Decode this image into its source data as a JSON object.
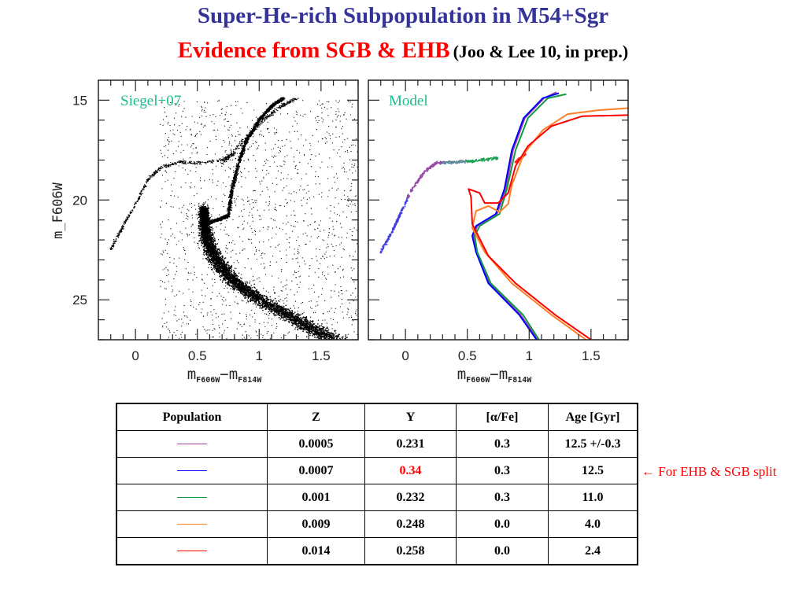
{
  "title": {
    "line1": "Super-He-rich Subpopulation in M54+Sgr",
    "line2_red": "Evidence from SGB & EHB",
    "line2_black": "(Joo & Lee 10, in prep.)"
  },
  "chart_data": [
    {
      "type": "scatter",
      "label": "Siegel+07",
      "xlabel": "m_F606W − m_F814W",
      "ylabel": "m_F606W",
      "xlim": [
        -0.3,
        1.8
      ],
      "ylim": [
        27,
        14
      ],
      "y_inverted": true,
      "xticks": [
        "0",
        "0.5",
        "1",
        "1.5"
      ],
      "yticks": [
        "15",
        "20",
        "25"
      ],
      "grid": false,
      "point_color": "#000000",
      "label_color": "#1abc8c",
      "ridge_lines": {
        "main_sequence": [
          [
            1.6,
            27
          ],
          [
            1.3,
            26
          ],
          [
            1.0,
            25
          ],
          [
            0.78,
            24
          ],
          [
            0.65,
            23
          ],
          [
            0.58,
            22
          ],
          [
            0.56,
            21.2
          ],
          [
            0.55,
            20.4
          ]
        ],
        "subgiant_branch": [
          [
            0.57,
            21.2
          ],
          [
            0.66,
            21.0
          ],
          [
            0.75,
            20.8
          ]
        ],
        "red_giant_branch": [
          [
            0.75,
            20.8
          ],
          [
            0.78,
            19.5
          ],
          [
            0.84,
            18
          ],
          [
            0.9,
            17
          ],
          [
            1.0,
            16
          ],
          [
            1.1,
            15.3
          ],
          [
            1.2,
            14.9
          ]
        ],
        "horizontal_branch": [
          [
            -0.2,
            22.5
          ],
          [
            -0.1,
            21.3
          ],
          [
            0.0,
            20.2
          ],
          [
            0.1,
            19.0
          ],
          [
            0.2,
            18.4
          ],
          [
            0.35,
            18.1
          ],
          [
            0.5,
            18.15
          ],
          [
            0.7,
            18.0
          ],
          [
            0.8,
            17.7
          ]
        ]
      }
    },
    {
      "type": "line",
      "label": "Model",
      "xlabel": "m_F606W − m_F814W",
      "xlim": [
        -0.3,
        1.8
      ],
      "ylim": [
        27,
        14
      ],
      "y_inverted": true,
      "xticks": [
        "0",
        "0.5",
        "1",
        "1.5"
      ],
      "grid": false,
      "label_color": "#1abc8c",
      "series": [
        {
          "color": "#a040a0",
          "points": [
            [
              1.07,
              27
            ],
            [
              0.93,
              25.75
            ],
            [
              0.68,
              24.17
            ],
            [
              0.575,
              22.6
            ],
            [
              0.55,
              21.8
            ],
            [
              0.58,
              21.3
            ],
            [
              0.74,
              20.7
            ],
            [
              0.81,
              19.45
            ],
            [
              0.87,
              17.5
            ],
            [
              0.965,
              15.9
            ],
            [
              1.12,
              14.9
            ],
            [
              1.22,
              14.6
            ]
          ]
        },
        {
          "color": "#0000ff",
          "points": [
            [
              1.06,
              27
            ],
            [
              0.92,
              25.75
            ],
            [
              0.67,
              24.17
            ],
            [
              0.57,
              22.6
            ],
            [
              0.54,
              21.8
            ],
            [
              0.57,
              21.3
            ],
            [
              0.73,
              20.7
            ],
            [
              0.8,
              19.45
            ],
            [
              0.86,
              17.5
            ],
            [
              0.955,
              15.9
            ],
            [
              1.11,
              14.9
            ],
            [
              1.24,
              14.65
            ]
          ]
        },
        {
          "color": "#119944",
          "points": [
            [
              1.08,
              27
            ],
            [
              0.95,
              25.75
            ],
            [
              0.69,
              24.17
            ],
            [
              0.58,
              22.6
            ],
            [
              0.56,
              21.8
            ],
            [
              0.6,
              21.3
            ],
            [
              0.76,
              20.7
            ],
            [
              0.82,
              19.45
            ],
            [
              0.89,
              17.5
            ],
            [
              0.99,
              15.9
            ],
            [
              1.15,
              14.9
            ],
            [
              1.3,
              14.7
            ]
          ]
        },
        {
          "color": "#ff7f27",
          "points": [
            [
              1.46,
              27
            ],
            [
              1.18,
              25.75
            ],
            [
              0.86,
              24.17
            ],
            [
              0.64,
              22.6
            ],
            [
              0.54,
              21.4
            ],
            [
              0.57,
              20.55
            ],
            [
              0.67,
              20.3
            ],
            [
              0.76,
              20.6
            ],
            [
              0.83,
              20.2
            ],
            [
              0.86,
              19.25
            ],
            [
              0.955,
              17.7
            ],
            [
              1.11,
              16.5
            ],
            [
              1.31,
              15.7
            ],
            [
              1.56,
              15.5
            ],
            [
              1.8,
              15.4
            ]
          ]
        },
        {
          "color": "#ff0000",
          "points": [
            [
              1.5,
              27
            ],
            [
              1.21,
              25.75
            ],
            [
              0.89,
              24.17
            ],
            [
              0.67,
              22.8
            ],
            [
              0.54,
              21.2
            ],
            [
              0.53,
              19.85
            ],
            [
              0.51,
              19.45
            ],
            [
              0.6,
              19.65
            ],
            [
              0.64,
              20.15
            ],
            [
              0.75,
              20.15
            ],
            [
              0.83,
              19.65
            ],
            [
              0.89,
              18.3
            ],
            [
              0.99,
              17.3
            ],
            [
              1.18,
              16.3
            ],
            [
              1.43,
              15.8
            ],
            [
              1.8,
              15.75
            ]
          ]
        }
      ],
      "hb_model": [
        [
          -0.2,
          22.6
        ],
        [
          -0.1,
          21.5
        ],
        [
          -0.05,
          20.8
        ],
        [
          0.05,
          19.5
        ],
        [
          0.15,
          18.6
        ],
        [
          0.25,
          18.15
        ],
        [
          0.4,
          18.1
        ],
        [
          0.55,
          18.05
        ],
        [
          0.75,
          17.9
        ]
      ],
      "red_clump": [
        0.92,
        18.0
      ]
    }
  ],
  "table": {
    "headers": [
      "Population",
      "Z",
      "Y",
      "[α/Fe]",
      "Age [Gyr]"
    ],
    "rows": [
      {
        "color": "#a040a0",
        "Z": "0.0005",
        "Y": "0.231",
        "afe": "0.3",
        "age": "12.5 +/-0.3"
      },
      {
        "color": "#0000ff",
        "Z": "0.0007",
        "Y": "0.34",
        "afe": "0.3",
        "age": "12.5",
        "y_highlight": "#ff0000"
      },
      {
        "color": "#119944",
        "Z": "0.001",
        "Y": "0.232",
        "afe": "0.3",
        "age": "11.0"
      },
      {
        "color": "#ff7f27",
        "Z": "0.009",
        "Y": "0.248",
        "afe": "0.0",
        "age": "4.0"
      },
      {
        "color": "#ff0000",
        "Z": "0.014",
        "Y": "0.258",
        "afe": "0.0",
        "age": "2.4"
      }
    ]
  },
  "note": "← For EHB & SGB split"
}
